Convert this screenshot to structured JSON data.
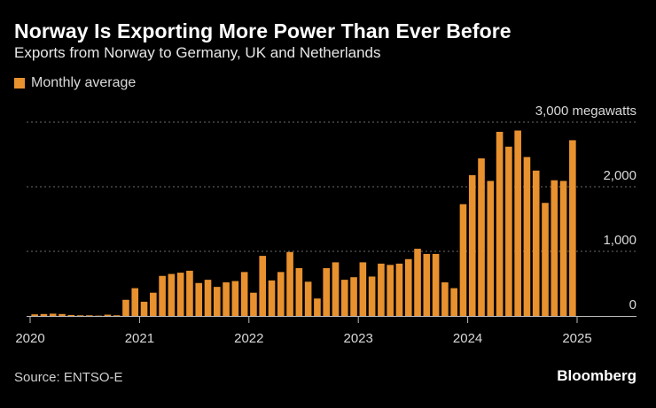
{
  "header": {
    "title": "Norway Is Exporting More Power Than Ever Before",
    "subtitle": "Exports from Norway to Germany, UK and Netherlands"
  },
  "legend": {
    "label": "Monthly average",
    "color": "#E8912F"
  },
  "footer": {
    "source": "Source: ENTSO-E",
    "brand": "Bloomberg"
  },
  "chart_data": {
    "type": "bar",
    "title": "Norway Is Exporting More Power Than Ever Before",
    "subtitle": "Exports from Norway to Germany, UK and Netherlands",
    "ylabel": "",
    "xlabel": "",
    "unit_label": "3,000 megawatts",
    "ylim": [
      0,
      3000
    ],
    "y_ticks": [
      {
        "value": 0,
        "label": "0"
      },
      {
        "value": 1000,
        "label": "1,000"
      },
      {
        "value": 2000,
        "label": "2,000"
      },
      {
        "value": 3000,
        "label": "3,000 megawatts"
      }
    ],
    "x_ticks": [
      "2020",
      "2021",
      "2022",
      "2023",
      "2024",
      "2025"
    ],
    "grid": true,
    "y_axis_position": "right",
    "legend_position": "top-left",
    "bar_color": "#E8912F",
    "series": [
      {
        "name": "Monthly average",
        "start": "2020-01",
        "values": [
          25,
          30,
          35,
          30,
          15,
          10,
          10,
          5,
          20,
          10,
          250,
          430,
          220,
          360,
          620,
          650,
          670,
          700,
          510,
          560,
          450,
          520,
          540,
          680,
          360,
          930,
          550,
          680,
          990,
          740,
          530,
          270,
          740,
          830,
          560,
          600,
          830,
          610,
          810,
          790,
          810,
          880,
          1040,
          960,
          960,
          520,
          430,
          1730,
          2180,
          2440,
          2090,
          2850,
          2620,
          2870,
          2460,
          2250,
          1750,
          2100,
          2090,
          2720
        ]
      }
    ]
  }
}
